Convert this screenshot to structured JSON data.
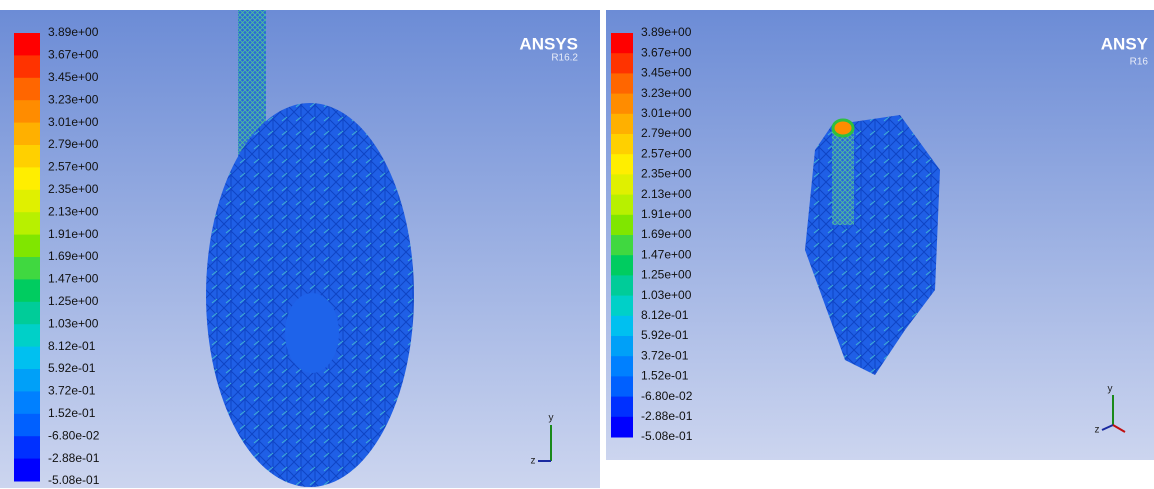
{
  "panels": [
    {
      "brand": "ANSYS",
      "version": "R16.2",
      "legend": [
        "3.89e+00",
        "3.67e+00",
        "3.45e+00",
        "3.23e+00",
        "3.01e+00",
        "2.79e+00",
        "2.57e+00",
        "2.35e+00",
        "2.13e+00",
        "1.91e+00",
        "1.69e+00",
        "1.47e+00",
        "1.25e+00",
        "1.03e+00",
        "8.12e-01",
        "5.92e-01",
        "3.72e-01",
        "1.52e-01",
        "-6.80e-02",
        "-2.88e-01",
        "-5.08e-01"
      ],
      "axes": {
        "y": "y",
        "z": "z"
      }
    },
    {
      "brand": "ANSY",
      "version": "R16",
      "legend": [
        "3.89e+00",
        "3.67e+00",
        "3.45e+00",
        "3.23e+00",
        "3.01e+00",
        "2.79e+00",
        "2.57e+00",
        "2.35e+00",
        "2.13e+00",
        "1.91e+00",
        "1.69e+00",
        "1.47e+00",
        "1.25e+00",
        "1.03e+00",
        "8.12e-01",
        "5.92e-01",
        "3.72e-01",
        "1.52e-01",
        "-6.80e-02",
        "-2.88e-01",
        "-5.08e-01"
      ],
      "axes": {
        "y": "y",
        "z": "z"
      }
    }
  ]
}
